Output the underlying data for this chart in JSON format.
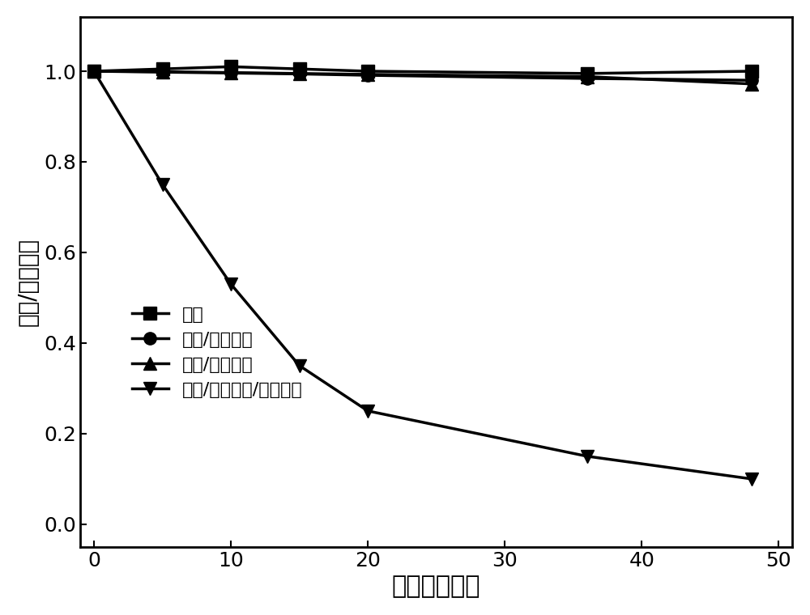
{
  "series": [
    {
      "label": "土壤",
      "x": [
        0,
        5,
        10,
        15,
        20,
        36,
        48
      ],
      "y": [
        1.0,
        1.005,
        1.01,
        1.005,
        1.0,
        0.995,
        1.0
      ],
      "marker": "s",
      "color": "#000000",
      "linewidth": 2.5,
      "markersize": 11,
      "zorder": 4
    },
    {
      "label": "土壤/抗坏血酸",
      "x": [
        0,
        5,
        10,
        15,
        20,
        36,
        48
      ],
      "y": [
        1.0,
        0.998,
        0.996,
        0.994,
        0.991,
        0.984,
        0.98
      ],
      "marker": "o",
      "color": "#000000",
      "linewidth": 2.5,
      "markersize": 11,
      "zorder": 3
    },
    {
      "label": "土壤/过氧化氢",
      "x": [
        0,
        5,
        10,
        15,
        20,
        36,
        48
      ],
      "y": [
        1.0,
        0.999,
        0.997,
        0.995,
        0.993,
        0.988,
        0.972
      ],
      "marker": "^",
      "color": "#000000",
      "linewidth": 2.5,
      "markersize": 11,
      "zorder": 2
    },
    {
      "label": "土壤/抗坏血酸/过氧化氢",
      "x": [
        0,
        5,
        10,
        15,
        20,
        36,
        48
      ],
      "y": [
        1.0,
        0.75,
        0.53,
        0.35,
        0.25,
        0.15,
        0.1
      ],
      "marker": "v",
      "color": "#000000",
      "linewidth": 2.5,
      "markersize": 11,
      "zorder": 5
    }
  ],
  "xlabel": "时间（小时）",
  "ylabel": "浓度/初始浓度",
  "xlim": [
    -1,
    51
  ],
  "ylim": [
    -0.05,
    1.12
  ],
  "xticks": [
    0,
    10,
    20,
    30,
    40,
    50
  ],
  "yticks": [
    0.0,
    0.2,
    0.4,
    0.6,
    0.8,
    1.0
  ],
  "xlabel_fontsize": 22,
  "ylabel_fontsize": 20,
  "tick_fontsize": 18,
  "legend_fontsize": 16,
  "background_color": "#ffffff"
}
